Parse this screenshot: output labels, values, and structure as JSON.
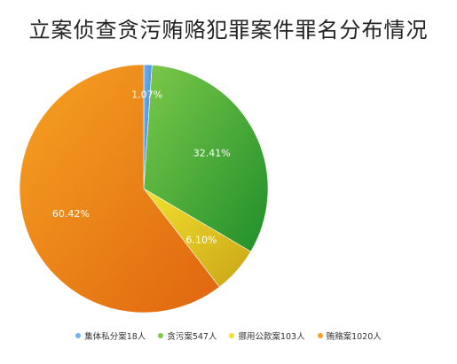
{
  "chart_data": {
    "type": "pie",
    "title": "立案侦查贪污贿赂犯罪案件罪名分布情况",
    "start_angle_deg": 0,
    "direction": "clockwise",
    "legend_position": "bottom",
    "slices": [
      {
        "label": "集体私分案18人",
        "value": 18,
        "percent_label": "1.07%",
        "color": "#2f80d6",
        "color2": "#6fb0f0"
      },
      {
        "label": "贪污案547人",
        "value": 547,
        "percent_label": "32.41%",
        "color": "#1f8f2a",
        "color2": "#7cc94a"
      },
      {
        "label": "挪用公款案103人",
        "value": 103,
        "percent_label": "6.10%",
        "color": "#c9a417",
        "color2": "#f2e12c"
      },
      {
        "label": "贿赂案1020人",
        "value": 1020,
        "percent_label": "60.42%",
        "color": "#e0650e",
        "color2": "#f5a223"
      }
    ]
  }
}
